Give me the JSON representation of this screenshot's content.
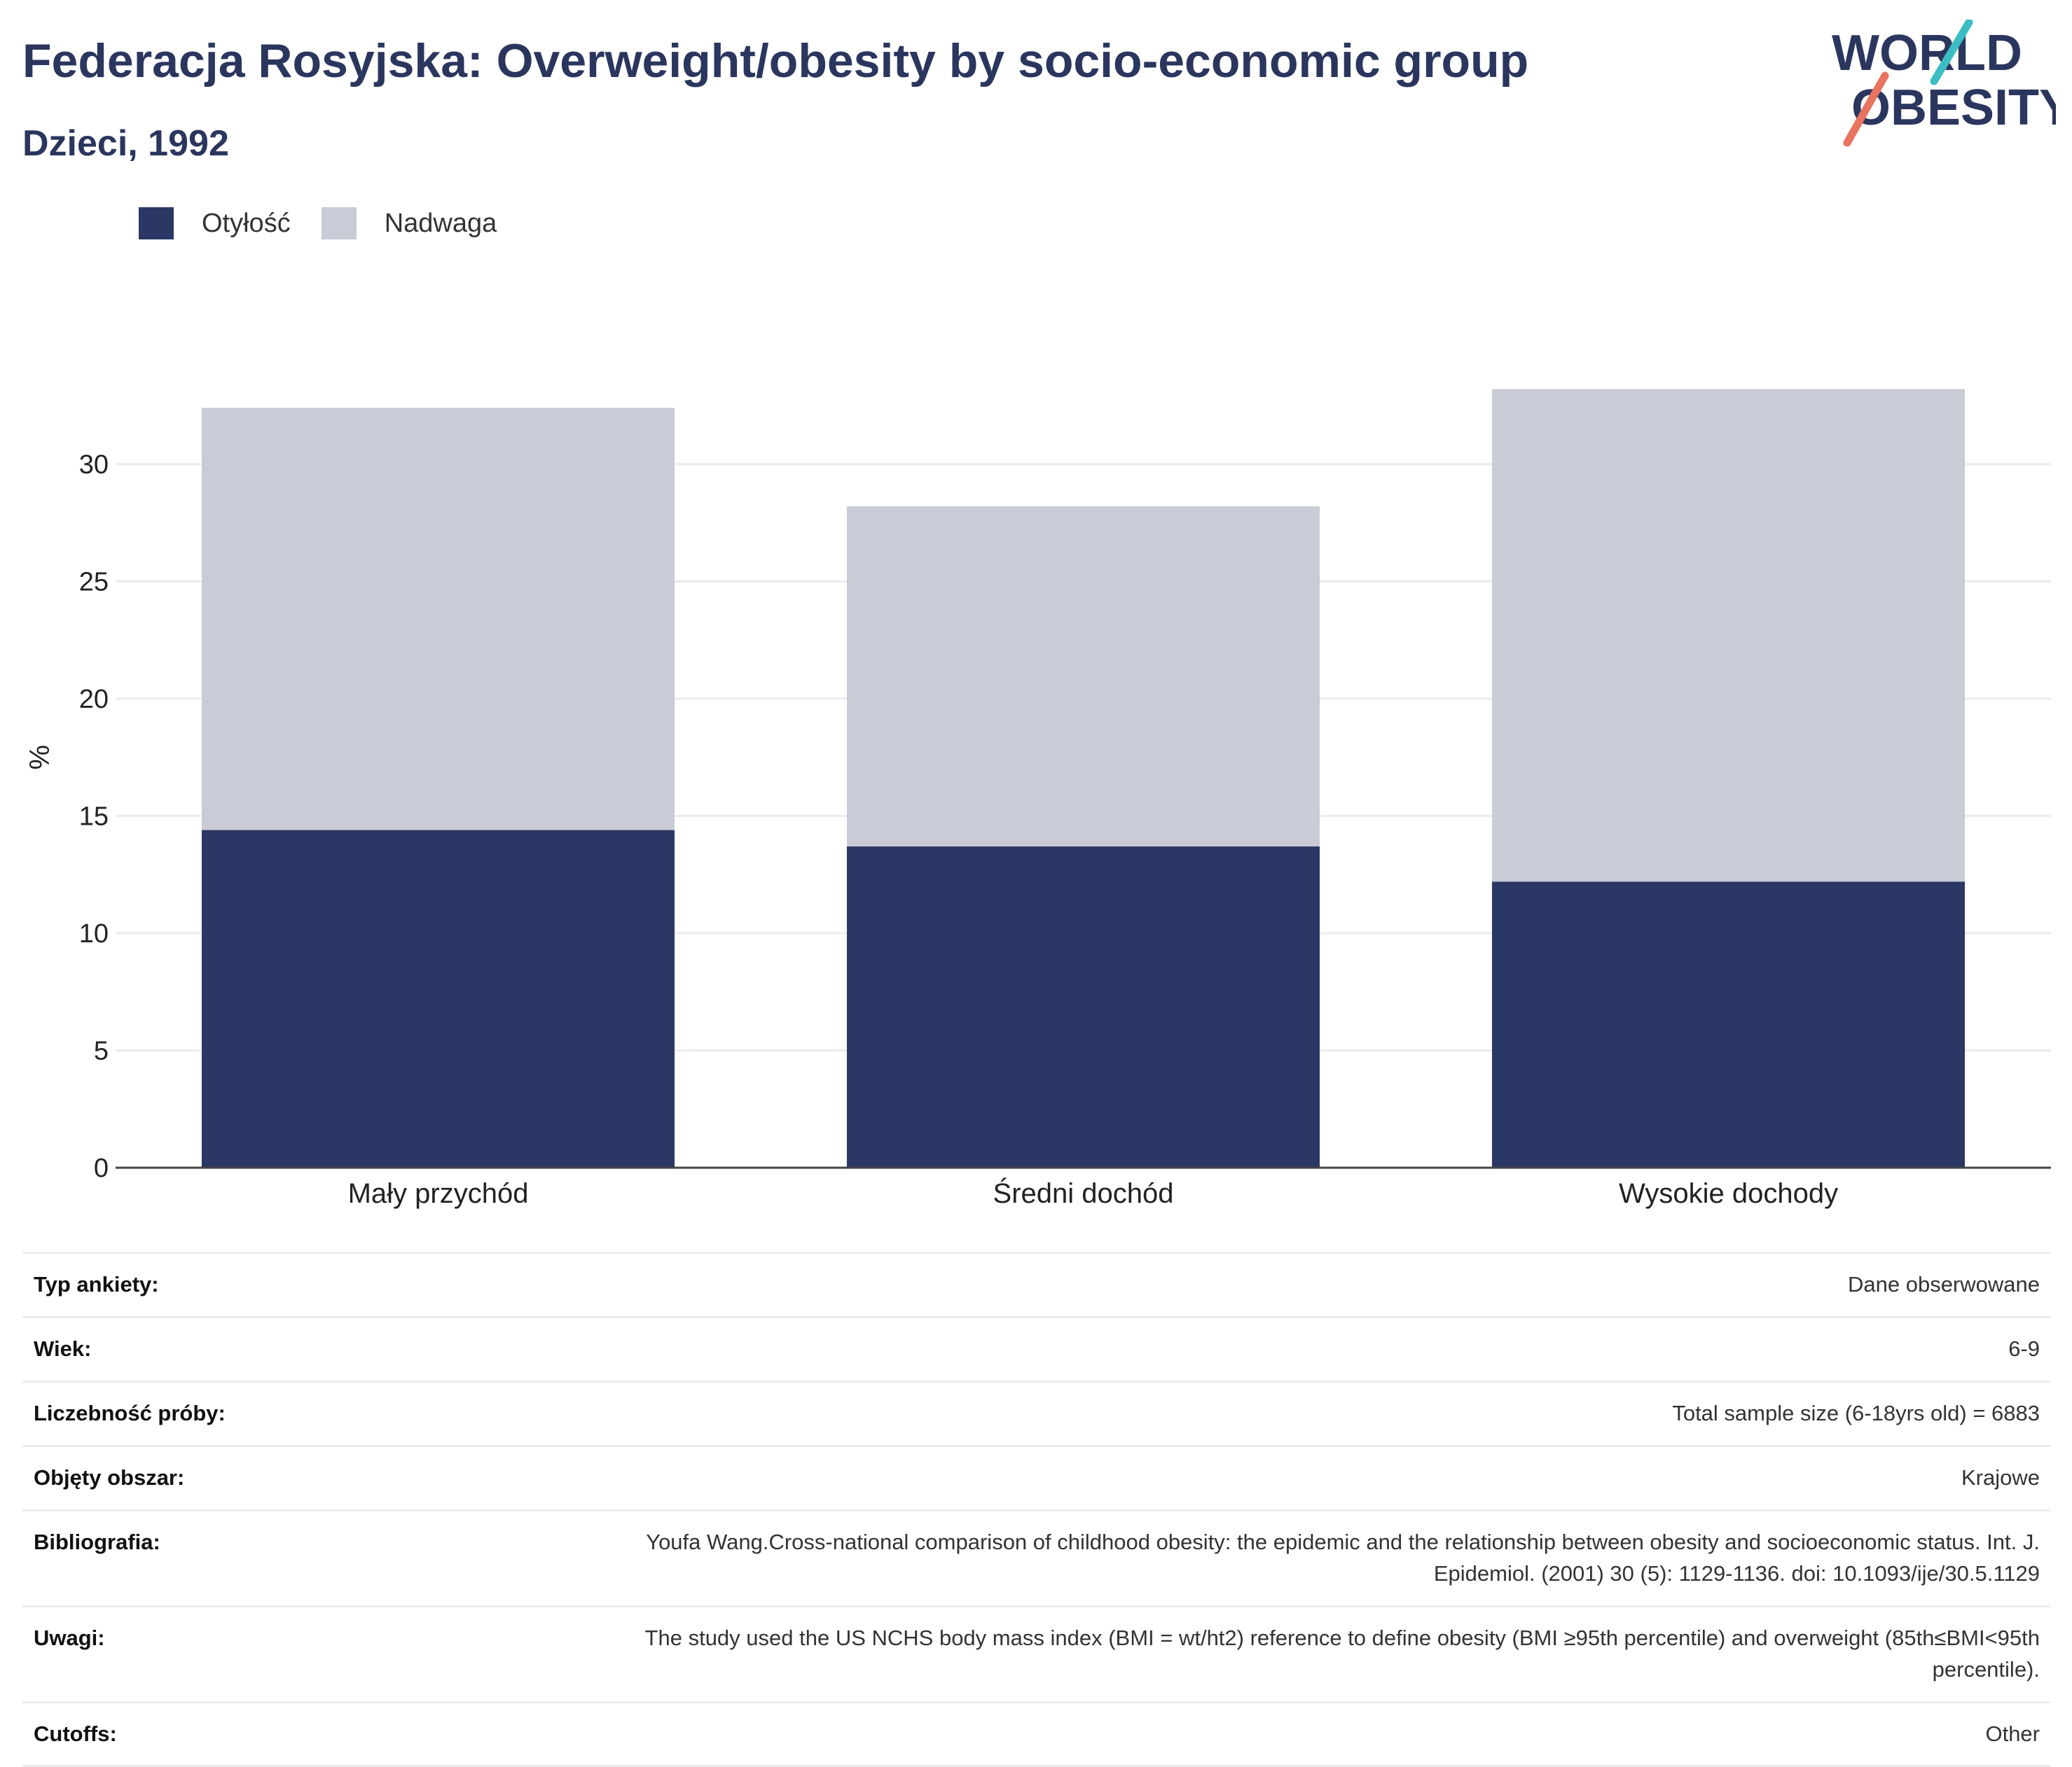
{
  "header": {
    "title": "Federacja Rosyjska: Overweight/obesity by socio-economic group",
    "subtitle": "Dzieci, 1992"
  },
  "logo": {
    "line1": "WORLD",
    "line2": "OBESITY",
    "accent_teal": "#3cbcc3",
    "accent_coral": "#e8735f",
    "text_color": "#2b365f"
  },
  "colors": {
    "obesity": "#2b3764",
    "overweight": "#c9cbd6",
    "axis": "#444444",
    "grid": "#ebebeb"
  },
  "chart_data": {
    "type": "bar",
    "stacked": true,
    "categories": [
      "Mały przychód",
      "Średni dochód",
      "Wysokie dochody"
    ],
    "series": [
      {
        "name": "Otyłość",
        "values": [
          14.4,
          13.7,
          12.2
        ]
      },
      {
        "name": "Nadwaga",
        "values": [
          18.0,
          14.5,
          21.0
        ]
      }
    ],
    "ylabel": "%",
    "ylim": [
      0,
      34
    ],
    "yticks": [
      0,
      5,
      10,
      15,
      20,
      25,
      30
    ],
    "grid": true,
    "legend_position": "top-left"
  },
  "info": [
    {
      "label": "Typ ankiety:",
      "value": "Dane obserwowane"
    },
    {
      "label": "Wiek:",
      "value": "6-9"
    },
    {
      "label": "Liczebność próby:",
      "value": "Total sample size (6-18yrs old) = 6883"
    },
    {
      "label": "Objęty obszar:",
      "value": "Krajowe"
    },
    {
      "label": "Bibliografia:",
      "value": "Youfa Wang.Cross-national comparison of childhood obesity: the epidemic and the relationship between obesity and socioeconomic status. Int. J. Epidemiol. (2001) 30 (5): 1129-1136. doi: 10.1093/ije/30.5.1129"
    },
    {
      "label": "Uwagi:",
      "value": "The study used the US NCHS body mass index (BMI = wt/ht2) reference to define obesity (BMI ≥95th percentile) and overweight (85th≤BMI<95th percentile)."
    },
    {
      "label": "Cutoffs:",
      "value": "Other"
    }
  ]
}
